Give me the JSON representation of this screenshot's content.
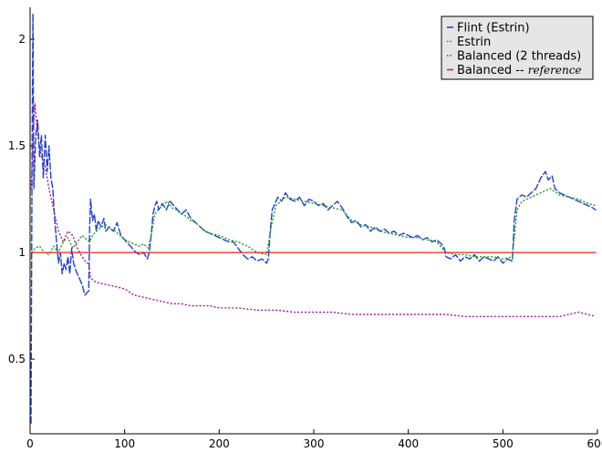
{
  "chart_data": {
    "type": "line",
    "xlim": [
      0,
      600
    ],
    "ylim": [
      0.15,
      2.15
    ],
    "xticks": [
      0,
      100,
      200,
      300,
      400,
      500,
      600
    ],
    "yticks": [
      0.5,
      1,
      1.5,
      2
    ],
    "xtick_labels": [
      "0",
      "100",
      "200",
      "300",
      "400",
      "500",
      "600"
    ],
    "ytick_labels": [
      "0.5",
      "1",
      "1.5",
      "2"
    ],
    "grid": false,
    "legend_position": "top-right",
    "series": [
      {
        "name": "Flint (Estrin)",
        "color": "#1f3fd4",
        "style": "dashed",
        "points": [
          [
            1,
            0.2
          ],
          [
            2,
            1.4
          ],
          [
            3,
            2.12
          ],
          [
            4,
            1.3
          ],
          [
            6,
            1.55
          ],
          [
            8,
            1.62
          ],
          [
            10,
            1.45
          ],
          [
            12,
            1.55
          ],
          [
            14,
            1.35
          ],
          [
            16,
            1.55
          ],
          [
            18,
            1.38
          ],
          [
            20,
            1.5
          ],
          [
            22,
            1.35
          ],
          [
            24,
            1.3
          ],
          [
            26,
            1.15
          ],
          [
            28,
            1.05
          ],
          [
            30,
            0.95
          ],
          [
            32,
            1.0
          ],
          [
            34,
            0.9
          ],
          [
            36,
            0.95
          ],
          [
            38,
            0.92
          ],
          [
            40,
            0.98
          ],
          [
            42,
            0.9
          ],
          [
            44,
            1.02
          ],
          [
            46,
            0.95
          ],
          [
            48,
            0.92
          ],
          [
            50,
            0.9
          ],
          [
            52,
            0.88
          ],
          [
            55,
            0.85
          ],
          [
            58,
            0.8
          ],
          [
            62,
            0.82
          ],
          [
            63,
            1.12
          ],
          [
            64,
            1.25
          ],
          [
            66,
            1.15
          ],
          [
            68,
            1.18
          ],
          [
            70,
            1.1
          ],
          [
            72,
            1.15
          ],
          [
            75,
            1.12
          ],
          [
            78,
            1.16
          ],
          [
            80,
            1.1
          ],
          [
            84,
            1.12
          ],
          [
            88,
            1.1
          ],
          [
            92,
            1.14
          ],
          [
            96,
            1.08
          ],
          [
            100,
            1.06
          ],
          [
            104,
            1.04
          ],
          [
            108,
            1.02
          ],
          [
            112,
            1.0
          ],
          [
            116,
            0.99
          ],
          [
            120,
            1.0
          ],
          [
            124,
            0.97
          ],
          [
            126,
            1.0
          ],
          [
            128,
            1.08
          ],
          [
            130,
            1.18
          ],
          [
            132,
            1.22
          ],
          [
            134,
            1.24
          ],
          [
            136,
            1.2
          ],
          [
            140,
            1.23
          ],
          [
            144,
            1.2
          ],
          [
            148,
            1.24
          ],
          [
            152,
            1.22
          ],
          [
            156,
            1.2
          ],
          [
            160,
            1.18
          ],
          [
            165,
            1.2
          ],
          [
            170,
            1.16
          ],
          [
            175,
            1.14
          ],
          [
            180,
            1.12
          ],
          [
            185,
            1.1
          ],
          [
            190,
            1.09
          ],
          [
            195,
            1.08
          ],
          [
            200,
            1.07
          ],
          [
            205,
            1.06
          ],
          [
            210,
            1.05
          ],
          [
            215,
            1.05
          ],
          [
            220,
            1.02
          ],
          [
            225,
            0.99
          ],
          [
            230,
            0.97
          ],
          [
            235,
            0.98
          ],
          [
            240,
            0.96
          ],
          [
            245,
            0.97
          ],
          [
            250,
            0.95
          ],
          [
            252,
            0.97
          ],
          [
            254,
            1.1
          ],
          [
            256,
            1.2
          ],
          [
            258,
            1.22
          ],
          [
            262,
            1.26
          ],
          [
            266,
            1.24
          ],
          [
            270,
            1.28
          ],
          [
            275,
            1.25
          ],
          [
            280,
            1.24
          ],
          [
            285,
            1.26
          ],
          [
            290,
            1.22
          ],
          [
            295,
            1.25
          ],
          [
            300,
            1.24
          ],
          [
            305,
            1.22
          ],
          [
            310,
            1.23
          ],
          [
            315,
            1.2
          ],
          [
            320,
            1.22
          ],
          [
            325,
            1.24
          ],
          [
            330,
            1.21
          ],
          [
            335,
            1.17
          ],
          [
            340,
            1.14
          ],
          [
            345,
            1.15
          ],
          [
            350,
            1.12
          ],
          [
            355,
            1.13
          ],
          [
            360,
            1.1
          ],
          [
            365,
            1.12
          ],
          [
            370,
            1.1
          ],
          [
            375,
            1.11
          ],
          [
            380,
            1.09
          ],
          [
            385,
            1.1
          ],
          [
            390,
            1.08
          ],
          [
            395,
            1.09
          ],
          [
            400,
            1.08
          ],
          [
            405,
            1.07
          ],
          [
            410,
            1.08
          ],
          [
            415,
            1.06
          ],
          [
            420,
            1.07
          ],
          [
            425,
            1.05
          ],
          [
            430,
            1.06
          ],
          [
            435,
            1.04
          ],
          [
            438,
            1.02
          ],
          [
            440,
            0.98
          ],
          [
            445,
            0.97
          ],
          [
            450,
            0.99
          ],
          [
            455,
            0.96
          ],
          [
            460,
            0.98
          ],
          [
            465,
            0.97
          ],
          [
            470,
            0.99
          ],
          [
            475,
            0.96
          ],
          [
            480,
            0.98
          ],
          [
            485,
            0.97
          ],
          [
            490,
            0.96
          ],
          [
            495,
            0.98
          ],
          [
            500,
            0.95
          ],
          [
            505,
            0.97
          ],
          [
            510,
            0.96
          ],
          [
            512,
            1.15
          ],
          [
            515,
            1.25
          ],
          [
            520,
            1.27
          ],
          [
            525,
            1.26
          ],
          [
            530,
            1.28
          ],
          [
            535,
            1.3
          ],
          [
            540,
            1.35
          ],
          [
            545,
            1.38
          ],
          [
            548,
            1.34
          ],
          [
            552,
            1.36
          ],
          [
            555,
            1.3
          ],
          [
            560,
            1.28
          ],
          [
            565,
            1.27
          ],
          [
            570,
            1.26
          ],
          [
            575,
            1.25
          ],
          [
            580,
            1.24
          ],
          [
            585,
            1.23
          ],
          [
            590,
            1.22
          ],
          [
            595,
            1.21
          ],
          [
            598,
            1.2
          ]
        ]
      },
      {
        "name": "Estrin",
        "color": "#1fa01f",
        "style": "dotted",
        "points": [
          [
            2,
            1.0
          ],
          [
            5,
            1.02
          ],
          [
            10,
            1.03
          ],
          [
            15,
            1.0
          ],
          [
            20,
            0.99
          ],
          [
            25,
            1.03
          ],
          [
            30,
            1.0
          ],
          [
            35,
            1.05
          ],
          [
            40,
            1.07
          ],
          [
            45,
            1.02
          ],
          [
            50,
            1.05
          ],
          [
            55,
            1.08
          ],
          [
            60,
            1.06
          ],
          [
            63,
            1.05
          ],
          [
            66,
            1.08
          ],
          [
            70,
            1.1
          ],
          [
            75,
            1.12
          ],
          [
            80,
            1.13
          ],
          [
            85,
            1.11
          ],
          [
            90,
            1.1
          ],
          [
            95,
            1.08
          ],
          [
            100,
            1.06
          ],
          [
            105,
            1.05
          ],
          [
            110,
            1.04
          ],
          [
            115,
            1.03
          ],
          [
            120,
            1.04
          ],
          [
            125,
            1.02
          ],
          [
            128,
            1.08
          ],
          [
            132,
            1.18
          ],
          [
            135,
            1.2
          ],
          [
            140,
            1.22
          ],
          [
            145,
            1.24
          ],
          [
            150,
            1.21
          ],
          [
            155,
            1.2
          ],
          [
            160,
            1.18
          ],
          [
            165,
            1.17
          ],
          [
            170,
            1.15
          ],
          [
            175,
            1.14
          ],
          [
            180,
            1.12
          ],
          [
            185,
            1.1
          ],
          [
            190,
            1.09
          ],
          [
            200,
            1.08
          ],
          [
            210,
            1.06
          ],
          [
            220,
            1.05
          ],
          [
            230,
            1.03
          ],
          [
            240,
            1.0
          ],
          [
            250,
            0.99
          ],
          [
            255,
            1.12
          ],
          [
            260,
            1.22
          ],
          [
            270,
            1.26
          ],
          [
            280,
            1.25
          ],
          [
            290,
            1.24
          ],
          [
            300,
            1.23
          ],
          [
            310,
            1.22
          ],
          [
            320,
            1.21
          ],
          [
            330,
            1.2
          ],
          [
            340,
            1.15
          ],
          [
            350,
            1.13
          ],
          [
            360,
            1.12
          ],
          [
            370,
            1.1
          ],
          [
            380,
            1.09
          ],
          [
            390,
            1.08
          ],
          [
            400,
            1.07
          ],
          [
            410,
            1.07
          ],
          [
            420,
            1.06
          ],
          [
            430,
            1.05
          ],
          [
            440,
            1.0
          ],
          [
            450,
            0.99
          ],
          [
            460,
            0.99
          ],
          [
            470,
            0.98
          ],
          [
            480,
            0.98
          ],
          [
            490,
            0.98
          ],
          [
            500,
            0.97
          ],
          [
            510,
            0.98
          ],
          [
            515,
            1.2
          ],
          [
            520,
            1.24
          ],
          [
            530,
            1.26
          ],
          [
            540,
            1.28
          ],
          [
            550,
            1.3
          ],
          [
            560,
            1.27
          ],
          [
            570,
            1.26
          ],
          [
            580,
            1.25
          ],
          [
            590,
            1.23
          ],
          [
            598,
            1.22
          ]
        ]
      },
      {
        "name": "Balanced (2 threads)",
        "color": "#a020a0",
        "style": "dotted",
        "points": [
          [
            1,
            1.3
          ],
          [
            3,
            1.5
          ],
          [
            5,
            1.7
          ],
          [
            8,
            1.55
          ],
          [
            12,
            1.45
          ],
          [
            16,
            1.4
          ],
          [
            20,
            1.3
          ],
          [
            25,
            1.2
          ],
          [
            30,
            1.1
          ],
          [
            35,
            1.05
          ],
          [
            40,
            1.1
          ],
          [
            45,
            1.08
          ],
          [
            50,
            1.02
          ],
          [
            55,
            0.98
          ],
          [
            60,
            0.95
          ],
          [
            62,
            0.95
          ],
          [
            64,
            0.88
          ],
          [
            70,
            0.86
          ],
          [
            80,
            0.85
          ],
          [
            90,
            0.84
          ],
          [
            100,
            0.83
          ],
          [
            110,
            0.8
          ],
          [
            120,
            0.79
          ],
          [
            130,
            0.78
          ],
          [
            140,
            0.77
          ],
          [
            150,
            0.76
          ],
          [
            160,
            0.76
          ],
          [
            170,
            0.75
          ],
          [
            180,
            0.75
          ],
          [
            190,
            0.75
          ],
          [
            200,
            0.74
          ],
          [
            220,
            0.74
          ],
          [
            240,
            0.73
          ],
          [
            260,
            0.73
          ],
          [
            280,
            0.72
          ],
          [
            300,
            0.72
          ],
          [
            320,
            0.72
          ],
          [
            340,
            0.71
          ],
          [
            360,
            0.71
          ],
          [
            380,
            0.71
          ],
          [
            400,
            0.71
          ],
          [
            420,
            0.71
          ],
          [
            440,
            0.71
          ],
          [
            460,
            0.7
          ],
          [
            480,
            0.7
          ],
          [
            500,
            0.7
          ],
          [
            520,
            0.7
          ],
          [
            540,
            0.7
          ],
          [
            560,
            0.7
          ],
          [
            580,
            0.72
          ],
          [
            590,
            0.71
          ],
          [
            598,
            0.7
          ]
        ]
      },
      {
        "name": "Balanced -- reference",
        "color": "#e82020",
        "style": "solid",
        "points": [
          [
            0,
            1.0
          ],
          [
            598,
            1.0
          ]
        ]
      }
    ],
    "legend": [
      {
        "label": "Flint (Estrin)"
      },
      {
        "label": "Estrin"
      },
      {
        "label": "Balanced (2 threads)"
      },
      {
        "label_prefix": "Balanced -- ",
        "label_italic": "reference"
      }
    ]
  }
}
